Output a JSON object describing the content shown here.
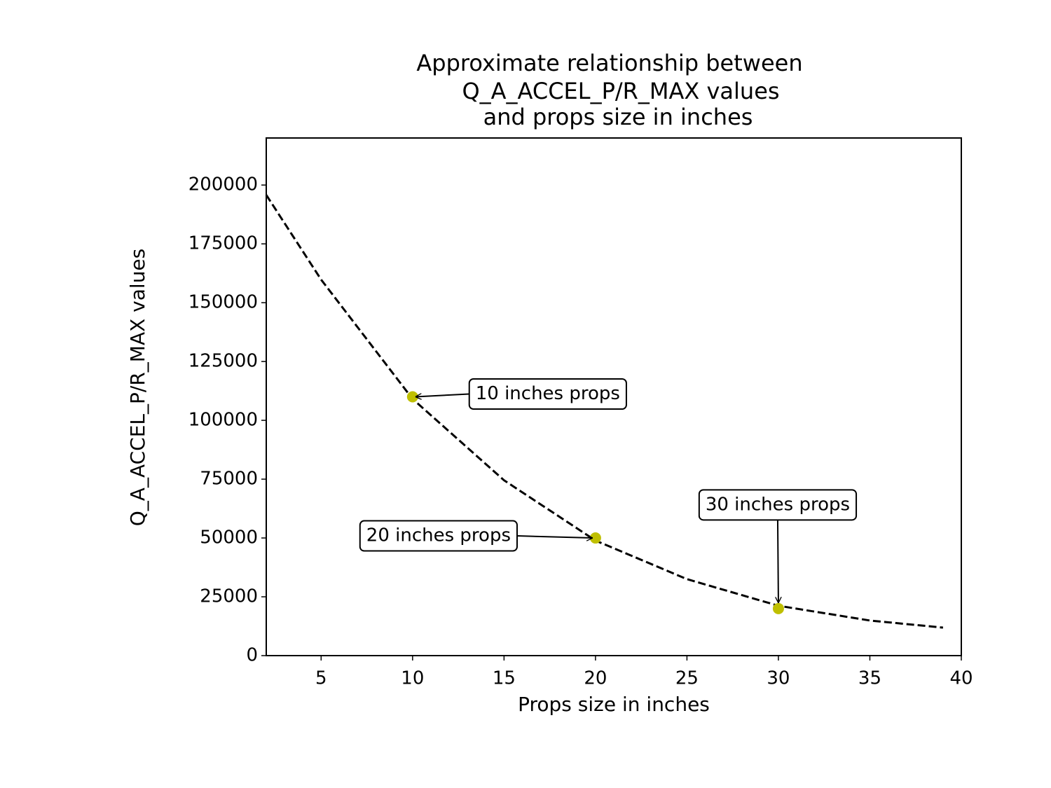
{
  "chart_data": {
    "type": "line",
    "title": [
      "Approximate relationship between",
      "Q_A_ACCEL_P/R_MAX values",
      "and props size in inches"
    ],
    "xlabel": "Props size in inches",
    "ylabel": "Q_A_ACCEL_P/R_MAX values",
    "xlim": [
      2,
      40
    ],
    "ylim": [
      0,
      220000
    ],
    "xticks": [
      5,
      10,
      15,
      20,
      25,
      30,
      35,
      40
    ],
    "yticks": [
      0,
      25000,
      50000,
      75000,
      100000,
      125000,
      150000,
      175000,
      200000
    ],
    "series": [
      {
        "type": "line",
        "color": "#000000",
        "linestyle": "dashed",
        "x": [
          2,
          5,
          10,
          15,
          20,
          25,
          30,
          35,
          39
        ],
        "values": [
          195800,
          159800,
          109100,
          74500,
          48900,
          32500,
          21200,
          14900,
          11900
        ]
      },
      {
        "type": "scatter",
        "color": "#bfbf00",
        "x": [
          10,
          20,
          30
        ],
        "values": [
          110000,
          50000,
          20000
        ]
      }
    ],
    "annotations": [
      "10 inches props",
      "20 inches props",
      "30 inches props"
    ]
  }
}
